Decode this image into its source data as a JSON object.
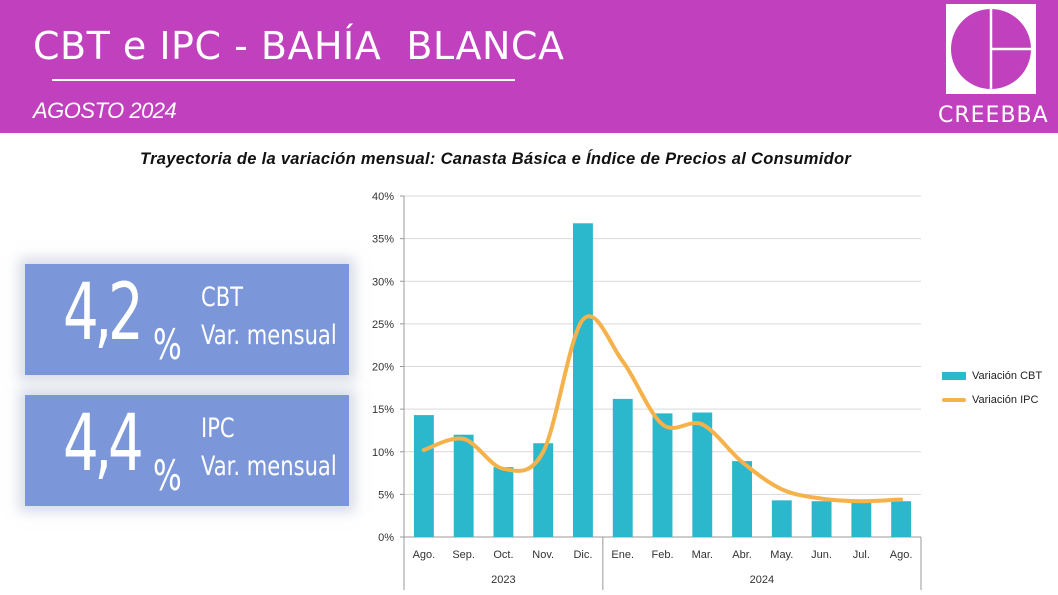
{
  "header": {
    "title": "CBT e IPC - BAHÍA  BLANCA",
    "subtitle": "AGOSTO 2024",
    "logo_text": "CREEBBA"
  },
  "kpis": [
    {
      "value": "4,2",
      "pct": "%",
      "line1": "CBT",
      "line2": "Var. mensual"
    },
    {
      "value": "4,4",
      "pct": "%",
      "line1": "IPC",
      "line2": "Var. mensual"
    }
  ],
  "colors": {
    "banner": "#c040be",
    "bar": "#2bb7cc",
    "line": "#f5b24a",
    "kpi_box": "#7b97da"
  },
  "chart_data": {
    "type": "bar",
    "title": "Trayectoria de la variación mensual: Canasta Básica e Índice de Precios al Consumidor",
    "categories": [
      "Ago.",
      "Sep.",
      "Oct.",
      "Nov.",
      "Dic.",
      "Ene.",
      "Feb.",
      "Mar.",
      "Abr.",
      "May.",
      "Jun.",
      "Jul.",
      "Ago."
    ],
    "groups": [
      {
        "label": "2023",
        "count": 5
      },
      {
        "label": "2024",
        "count": 8
      }
    ],
    "series": [
      {
        "name": "Variación CBT",
        "type": "bar",
        "values": [
          14.3,
          12.0,
          8.2,
          11.0,
          36.8,
          16.2,
          14.5,
          14.6,
          8.9,
          4.3,
          4.2,
          4.1,
          4.2
        ]
      },
      {
        "name": "Variación IPC",
        "type": "line",
        "values": [
          10.2,
          11.5,
          8.0,
          10.0,
          25.5,
          20.6,
          13.2,
          13.2,
          8.8,
          5.6,
          4.5,
          4.2,
          4.4
        ]
      }
    ],
    "yticks": [
      "0%",
      "5%",
      "10%",
      "15%",
      "20%",
      "25%",
      "30%",
      "35%",
      "40%"
    ],
    "ylim": [
      0,
      40
    ],
    "grid": true,
    "legend_position": "right"
  }
}
